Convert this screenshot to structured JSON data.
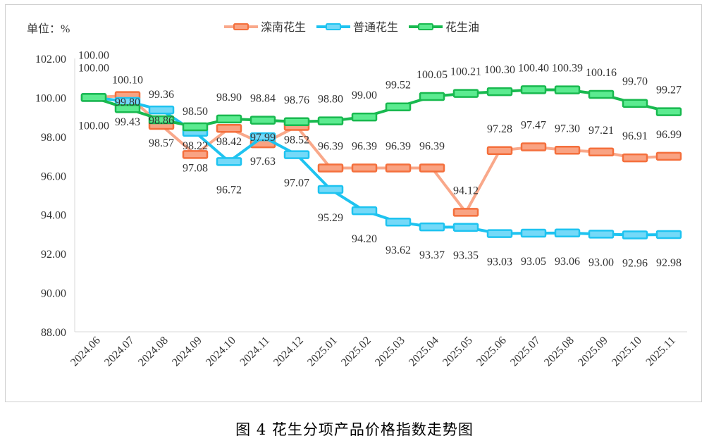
{
  "chart_data": {
    "type": "line",
    "title": "图 4  花生分项产品价格指数走势图",
    "unit_label": "单位：%",
    "xlabel": "",
    "ylabel": "单位：%",
    "ylim": [
      88,
      102
    ],
    "yticks": [
      "88.00",
      "90.00",
      "92.00",
      "94.00",
      "96.00",
      "98.00",
      "100.00",
      "102.00"
    ],
    "ytick_values": [
      88,
      90,
      92,
      94,
      96,
      98,
      100,
      102
    ],
    "grid": false,
    "legend_position": "top",
    "categories": [
      "2024.06",
      "2024.07",
      "2024.08",
      "2024.09",
      "2024.10",
      "2024.11",
      "2024.12",
      "2025.01",
      "2025.02",
      "2025.03",
      "2025.04",
      "2025.05",
      "2025.06",
      "2025.07",
      "2025.08",
      "2025.09",
      "2025.10",
      "2025.11"
    ],
    "series": [
      {
        "name": "滦南花生",
        "line_color": "#F9A88A",
        "marker_fill": "#F9A383",
        "marker_stroke": "#F46F3C",
        "values": [
          100.0,
          100.1,
          98.57,
          97.08,
          98.42,
          97.63,
          98.52,
          96.39,
          96.39,
          96.39,
          96.39,
          94.12,
          97.28,
          97.47,
          97.3,
          97.21,
          96.91,
          96.99
        ],
        "labels": [
          "100.00",
          "100.10",
          "98.57",
          "97.08",
          "98.42",
          "97.63",
          "98.52",
          "96.39",
          "96.39",
          "96.39",
          "96.39",
          "94.12",
          "97.28",
          "97.47",
          "97.30",
          "97.21",
          "96.91",
          "96.99"
        ],
        "label_pos": [
          "far-below",
          "near-above",
          "below",
          "near-below",
          "near-below",
          "below",
          "near-below",
          "above",
          "above",
          "above",
          "above",
          "above",
          "above",
          "above",
          "above",
          "above",
          "above",
          "above"
        ]
      },
      {
        "name": "普通花生",
        "line_color": "#1EC3F0",
        "marker_fill": "#74D9F8",
        "marker_stroke": "#1EC3F0",
        "values": [
          100.0,
          99.8,
          99.36,
          98.22,
          96.72,
          97.99,
          97.07,
          95.29,
          94.2,
          93.62,
          93.37,
          93.35,
          93.03,
          93.05,
          93.06,
          93.0,
          92.96,
          92.98
        ],
        "labels": [
          "100.00",
          "99.80",
          "99.36",
          "98.22",
          "96.72",
          "97.99",
          "97.07",
          "95.29",
          "94.20",
          "93.62",
          "93.37",
          "93.35",
          "93.03",
          "93.05",
          "93.06",
          "93.00",
          "92.96",
          "92.98"
        ],
        "label_pos": [
          "far-above",
          "center",
          "near-above",
          "near-below",
          "far-below",
          "center",
          "far-below",
          "far-below",
          "far-below",
          "far-below",
          "far-below",
          "far-below",
          "far-below",
          "far-below",
          "far-below",
          "far-below",
          "far-below",
          "far-below"
        ]
      },
      {
        "name": "花生油",
        "line_color": "#18B94F",
        "marker_fill": "#5CEB90",
        "marker_stroke": "#18B94F",
        "values": [
          100.0,
          99.43,
          98.86,
          98.5,
          98.9,
          98.84,
          98.76,
          98.8,
          99.0,
          99.52,
          100.05,
          100.21,
          100.3,
          100.4,
          100.39,
          100.16,
          99.7,
          99.27
        ],
        "labels": [
          "100.00",
          "99.43",
          "98.86",
          "98.50",
          "98.90",
          "98.84",
          "98.76",
          "98.80",
          "99.00",
          "99.52",
          "100.05",
          "100.21",
          "100.30",
          "100.40",
          "100.39",
          "100.16",
          "99.70",
          "99.27"
        ],
        "label_pos": [
          "far-above",
          "near-below",
          "center",
          "near-above",
          "above",
          "above",
          "above",
          "above",
          "above",
          "above",
          "above",
          "above",
          "above",
          "above",
          "above",
          "above",
          "above",
          "above"
        ]
      }
    ]
  }
}
